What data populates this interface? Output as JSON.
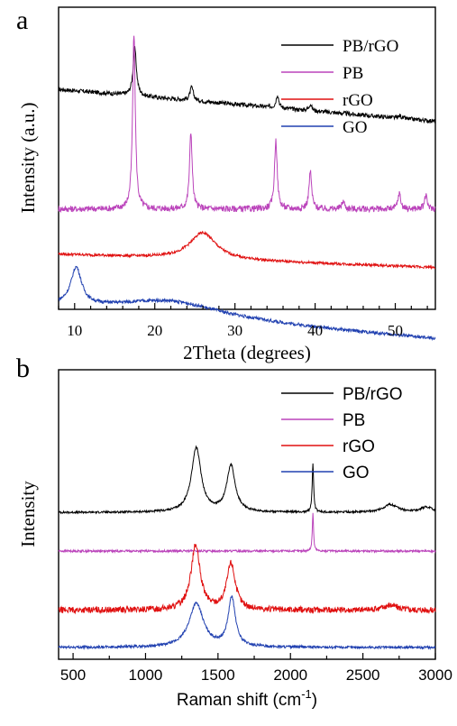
{
  "chart_data": [
    {
      "type": "line",
      "panel_label": "a",
      "xlabel": "2Theta (degrees)",
      "ylabel": "Intensity (a.u.)",
      "xlim": [
        8,
        55
      ],
      "xticks": [
        10,
        20,
        30,
        40,
        50
      ],
      "legend_position": "top-right",
      "series": [
        {
          "name": "PB/rGO",
          "color": "#000000",
          "baseline": 0.8,
          "slope": -0.12,
          "noise": 0.008,
          "peaks": [
            [
              17.5,
              0.18,
              0.25
            ],
            [
              24.6,
              0.05,
              0.25
            ],
            [
              35.3,
              0.05,
              0.2
            ],
            [
              39.4,
              0.025,
              0.2
            ],
            [
              50.6,
              0.01,
              0.2
            ]
          ]
        },
        {
          "name": "PB",
          "color": "#bb44bb",
          "baseline": 0.35,
          "slope": 0.0,
          "noise": 0.012,
          "peaks": [
            [
              17.4,
              0.66,
              0.2
            ],
            [
              24.5,
              0.29,
              0.2
            ],
            [
              35.1,
              0.26,
              0.2
            ],
            [
              39.4,
              0.14,
              0.2
            ],
            [
              43.5,
              0.03,
              0.2
            ],
            [
              50.5,
              0.06,
              0.2
            ],
            [
              53.8,
              0.05,
              0.2
            ]
          ]
        },
        {
          "name": "rGO",
          "color": "#e01010",
          "baseline": 0.18,
          "slope": -0.05,
          "noise": 0.005,
          "peaks": [
            [
              26.0,
              0.1,
              2.0
            ]
          ]
        },
        {
          "name": "GO",
          "color": "#2040b0",
          "baseline": -0.02,
          "slope": -0.12,
          "noise": 0.006,
          "peaks": [
            [
              10.2,
              0.14,
              0.8
            ],
            [
              22.0,
              0.06,
              8.0
            ]
          ]
        }
      ]
    },
    {
      "type": "line",
      "panel_label": "b",
      "xlabel": "Raman shift (cm",
      "xlabel_sup": "-1",
      "xlabel_tail": ")",
      "ylabel": "Intensity",
      "xlim": [
        400,
        3000
      ],
      "xticks": [
        500,
        1000,
        1500,
        2000,
        2500,
        3000
      ],
      "legend_position": "top-right",
      "series": [
        {
          "name": "PB/rGO",
          "color": "#000000",
          "baseline": 0.55,
          "slope": 0.0,
          "noise": 0.004,
          "peaks": [
            [
              1350,
              0.25,
              40
            ],
            [
              1590,
              0.18,
              35
            ],
            [
              2155,
              0.19,
              6
            ],
            [
              2690,
              0.03,
              60
            ],
            [
              2940,
              0.02,
              50
            ]
          ]
        },
        {
          "name": "PB",
          "color": "#bb44bb",
          "baseline": 0.4,
          "slope": 0.0,
          "noise": 0.004,
          "peaks": [
            [
              2155,
              0.15,
              5
            ]
          ]
        },
        {
          "name": "rGO",
          "color": "#e01010",
          "baseline": 0.17,
          "slope": 0.0,
          "noise": 0.012,
          "peaks": [
            [
              1345,
              0.25,
              38
            ],
            [
              1590,
              0.18,
              35
            ],
            [
              2690,
              0.02,
              60
            ]
          ]
        },
        {
          "name": "GO",
          "color": "#2040b0",
          "baseline": 0.025,
          "slope": 0.0,
          "noise": 0.005,
          "peaks": [
            [
              1350,
              0.17,
              60
            ],
            [
              1595,
              0.19,
              30
            ]
          ]
        }
      ]
    }
  ]
}
